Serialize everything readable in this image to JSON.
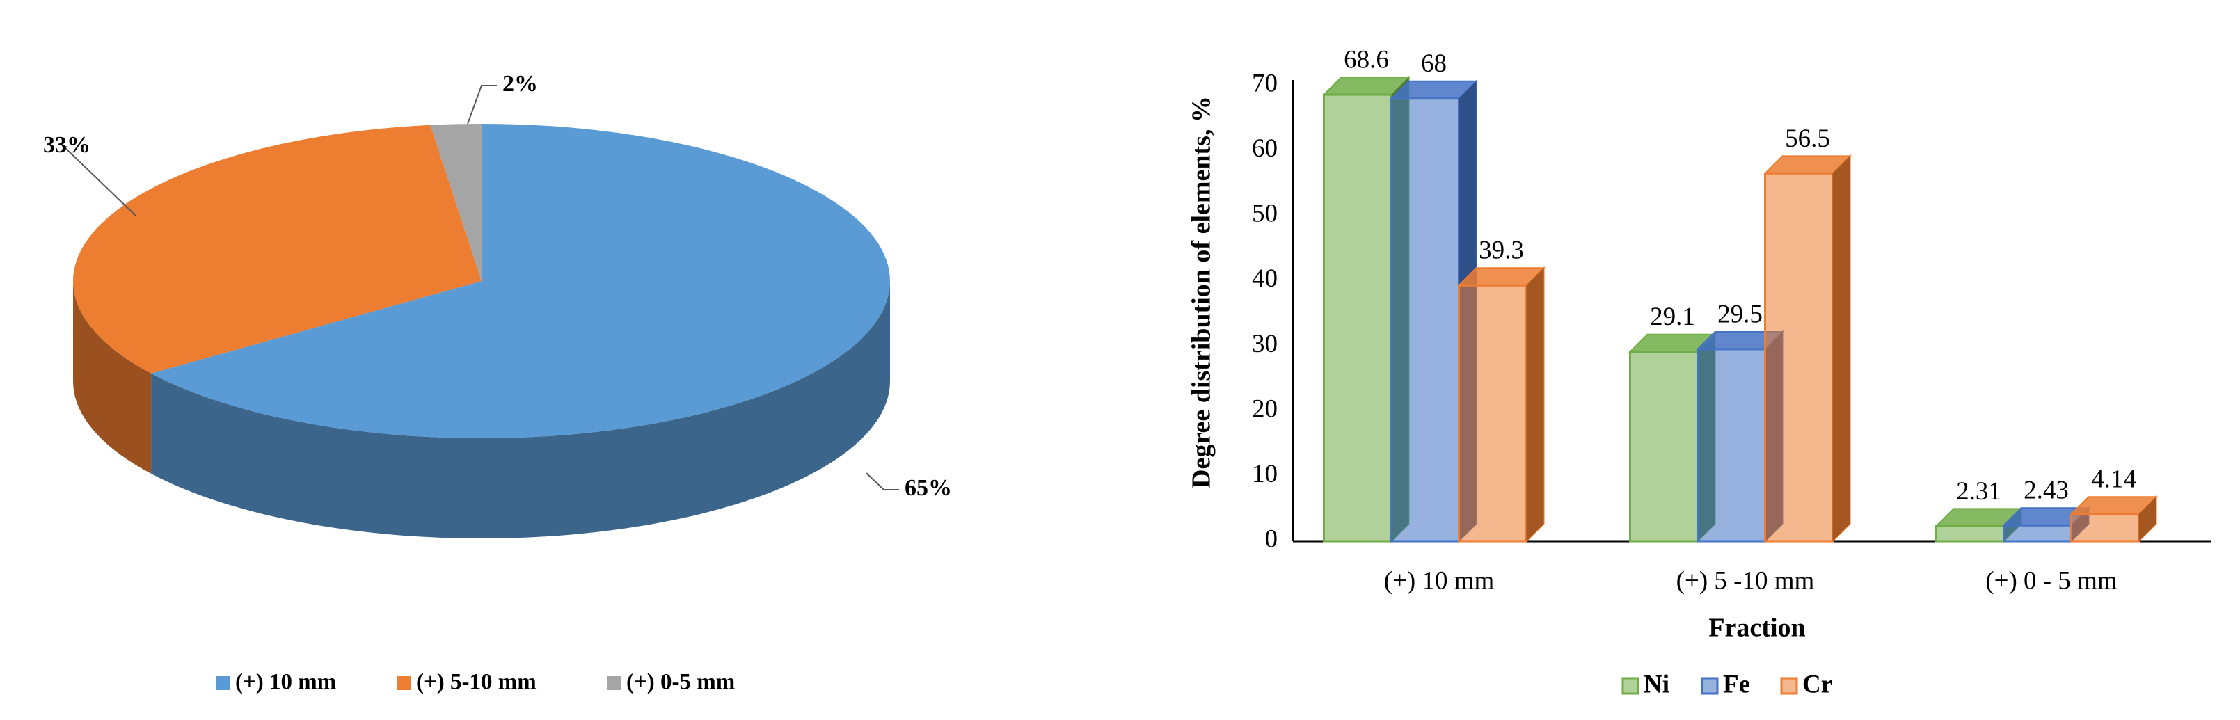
{
  "chart_data": [
    {
      "type": "pie3d",
      "categories": [
        "(+) 10 mm",
        "(+) 5-10 mm",
        "(+) 0-5 mm"
      ],
      "values": [
        65,
        33,
        2
      ],
      "value_labels": [
        "65%",
        "33%",
        "2%"
      ],
      "colors": [
        "#5b9bd5",
        "#ed7d31",
        "#a5a5a5"
      ],
      "legend": "bottom"
    },
    {
      "type": "bar3d",
      "ylabel": "Degree distribution  of elements, %",
      "xlabel": "Fraction",
      "categories": [
        "(+) 10 mm",
        "(+) 5 -10 mm",
        "(+) 0 - 5 mm"
      ],
      "series": [
        {
          "name": "Ni",
          "color": "#70ad47",
          "values": [
            68.6,
            29.1,
            2.31
          ]
        },
        {
          "name": "Fe",
          "color": "#4472c4",
          "values": [
            68,
            29.5,
            2.43
          ]
        },
        {
          "name": "Cr",
          "color": "#ed7d31",
          "values": [
            39.3,
            56.5,
            4.14
          ]
        }
      ],
      "ylim": [
        0,
        70
      ],
      "yticks": [
        0,
        10,
        20,
        30,
        40,
        50,
        60,
        70
      ],
      "grid": false,
      "legend": "bottom"
    }
  ]
}
